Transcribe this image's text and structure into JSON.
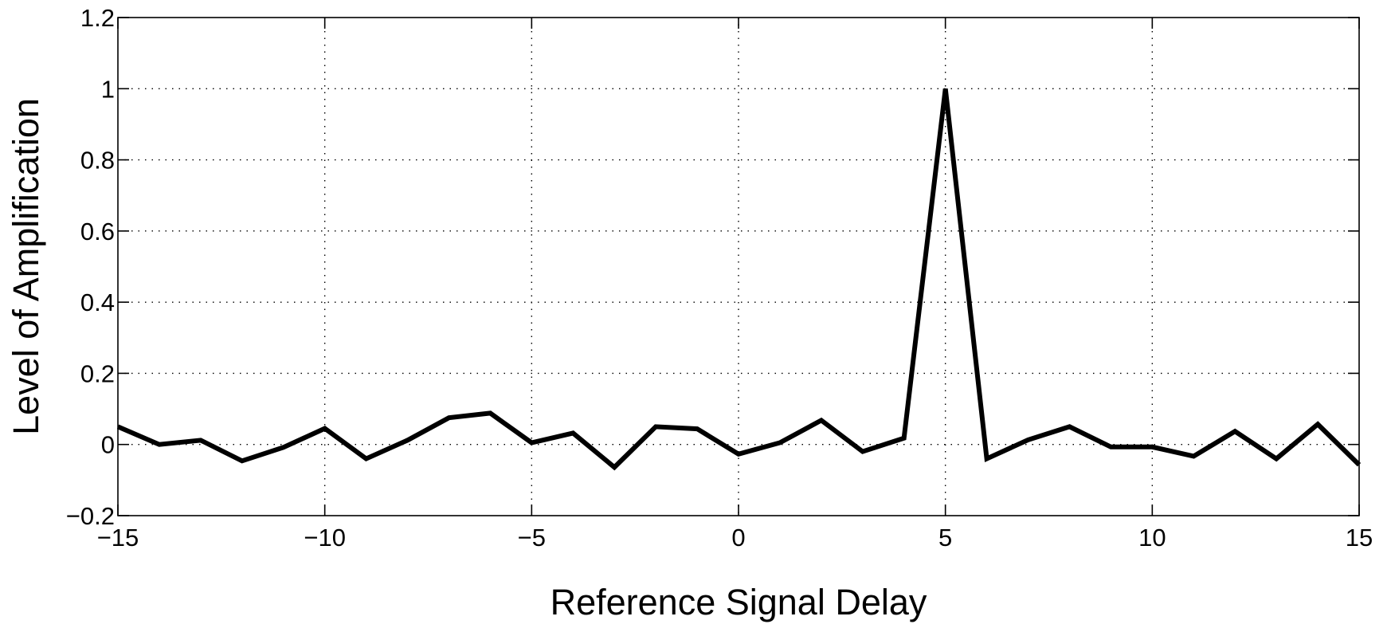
{
  "chart_data": {
    "type": "line",
    "title": "",
    "xlabel": "Reference Signal Delay",
    "ylabel": "Level of Amplification",
    "xlim": [
      -15,
      15
    ],
    "ylim": [
      -0.2,
      1.2
    ],
    "xticks": [
      -15,
      -10,
      -5,
      0,
      5,
      10,
      15
    ],
    "xtick_labels": [
      "−15",
      "−10",
      "−5",
      "0",
      "5",
      "10",
      "15"
    ],
    "yticks": [
      -0.2,
      0,
      0.2,
      0.4,
      0.6,
      0.8,
      1,
      1.2
    ],
    "ytick_labels": [
      "−0.2",
      "0",
      "0.2",
      "0.4",
      "0.6",
      "0.8",
      "1",
      "1.2"
    ],
    "grid": true,
    "series": [
      {
        "color": "#000000",
        "x": [
          -15,
          -14,
          -13,
          -12,
          -11,
          -10,
          -9,
          -8,
          -7,
          -6,
          -5,
          -4,
          -3,
          -2,
          -1,
          0,
          1,
          2,
          3,
          4,
          5,
          6,
          7,
          8,
          9,
          10,
          11,
          12,
          13,
          14,
          15
        ],
        "values": [
          0.05,
          0.0,
          0.012,
          -0.046,
          -0.008,
          0.045,
          -0.04,
          0.012,
          0.075,
          0.088,
          0.005,
          0.032,
          -0.064,
          0.05,
          0.044,
          -0.027,
          0.005,
          0.068,
          -0.02,
          0.018,
          1.0,
          -0.04,
          0.013,
          0.05,
          -0.007,
          -0.007,
          -0.033,
          0.037,
          -0.04,
          0.057,
          -0.057
        ]
      }
    ]
  }
}
